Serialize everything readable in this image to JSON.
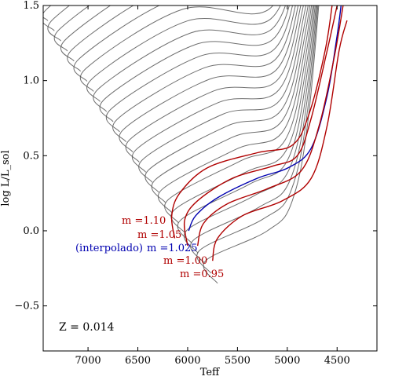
{
  "chart_data": {
    "type": "line",
    "xlabel": "Teff",
    "ylabel": "log L/L_sol",
    "xlim": [
      7450,
      4100
    ],
    "ylim": [
      -0.8,
      1.5
    ],
    "x_axis_inverted": true,
    "xticks": [
      7000,
      6500,
      6000,
      5500,
      5000,
      4500
    ],
    "yticks": [
      -0.5,
      0.0,
      0.5,
      1.0,
      1.5
    ],
    "xtick_labels": [
      "7000",
      "6500",
      "6000",
      "5500",
      "5000",
      "4500"
    ],
    "ytick_labels": [
      "−0.5",
      "0.0",
      "0.5",
      "1.0",
      "1.5"
    ],
    "grid": false,
    "annotation": "Z = 0.014",
    "background_track_color": "#555555",
    "background_tracks": {
      "description": "many grey evolutionary tracks, masses increasing toward upper-left",
      "count": 30
    },
    "series": [
      {
        "name": "m =1.10",
        "color": "#b00000",
        "points": [
          [
            6130,
            -0.05
          ],
          [
            6160,
            0.1
          ],
          [
            6080,
            0.25
          ],
          [
            5800,
            0.42
          ],
          [
            5300,
            0.52
          ],
          [
            4950,
            0.57
          ],
          [
            4780,
            0.78
          ],
          [
            4620,
            1.2
          ],
          [
            4550,
            1.5
          ]
        ]
      },
      {
        "name": "m =1.05",
        "color": "#b00000",
        "points": [
          [
            6000,
            -0.1
          ],
          [
            6030,
            0.07
          ],
          [
            5900,
            0.2
          ],
          [
            5550,
            0.35
          ],
          [
            5150,
            0.43
          ],
          [
            4900,
            0.5
          ],
          [
            4760,
            0.75
          ],
          [
            4600,
            1.2
          ],
          [
            4500,
            1.5
          ]
        ]
      },
      {
        "name": "m =1.025",
        "label_prefix": "(interpolado)",
        "color": "#0000b0",
        "points": [
          [
            5990,
            0.0
          ],
          [
            5920,
            0.1
          ],
          [
            5700,
            0.22
          ],
          [
            5300,
            0.35
          ],
          [
            4990,
            0.42
          ],
          [
            4760,
            0.55
          ],
          [
            4600,
            0.9
          ],
          [
            4500,
            1.3
          ],
          [
            4460,
            1.5
          ]
        ]
      },
      {
        "name": "m =1.00",
        "color": "#b00000",
        "points": [
          [
            5900,
            -0.1
          ],
          [
            5840,
            0.05
          ],
          [
            5600,
            0.18
          ],
          [
            5200,
            0.28
          ],
          [
            4860,
            0.4
          ],
          [
            4680,
            0.7
          ],
          [
            4530,
            1.15
          ],
          [
            4440,
            1.5
          ]
        ]
      },
      {
        "name": "m =0.95",
        "color": "#b00000",
        "points": [
          [
            5750,
            -0.2
          ],
          [
            5700,
            -0.05
          ],
          [
            5450,
            0.1
          ],
          [
            5050,
            0.2
          ],
          [
            4760,
            0.35
          ],
          [
            4600,
            0.7
          ],
          [
            4480,
            1.2
          ],
          [
            4400,
            1.4
          ]
        ]
      }
    ]
  }
}
